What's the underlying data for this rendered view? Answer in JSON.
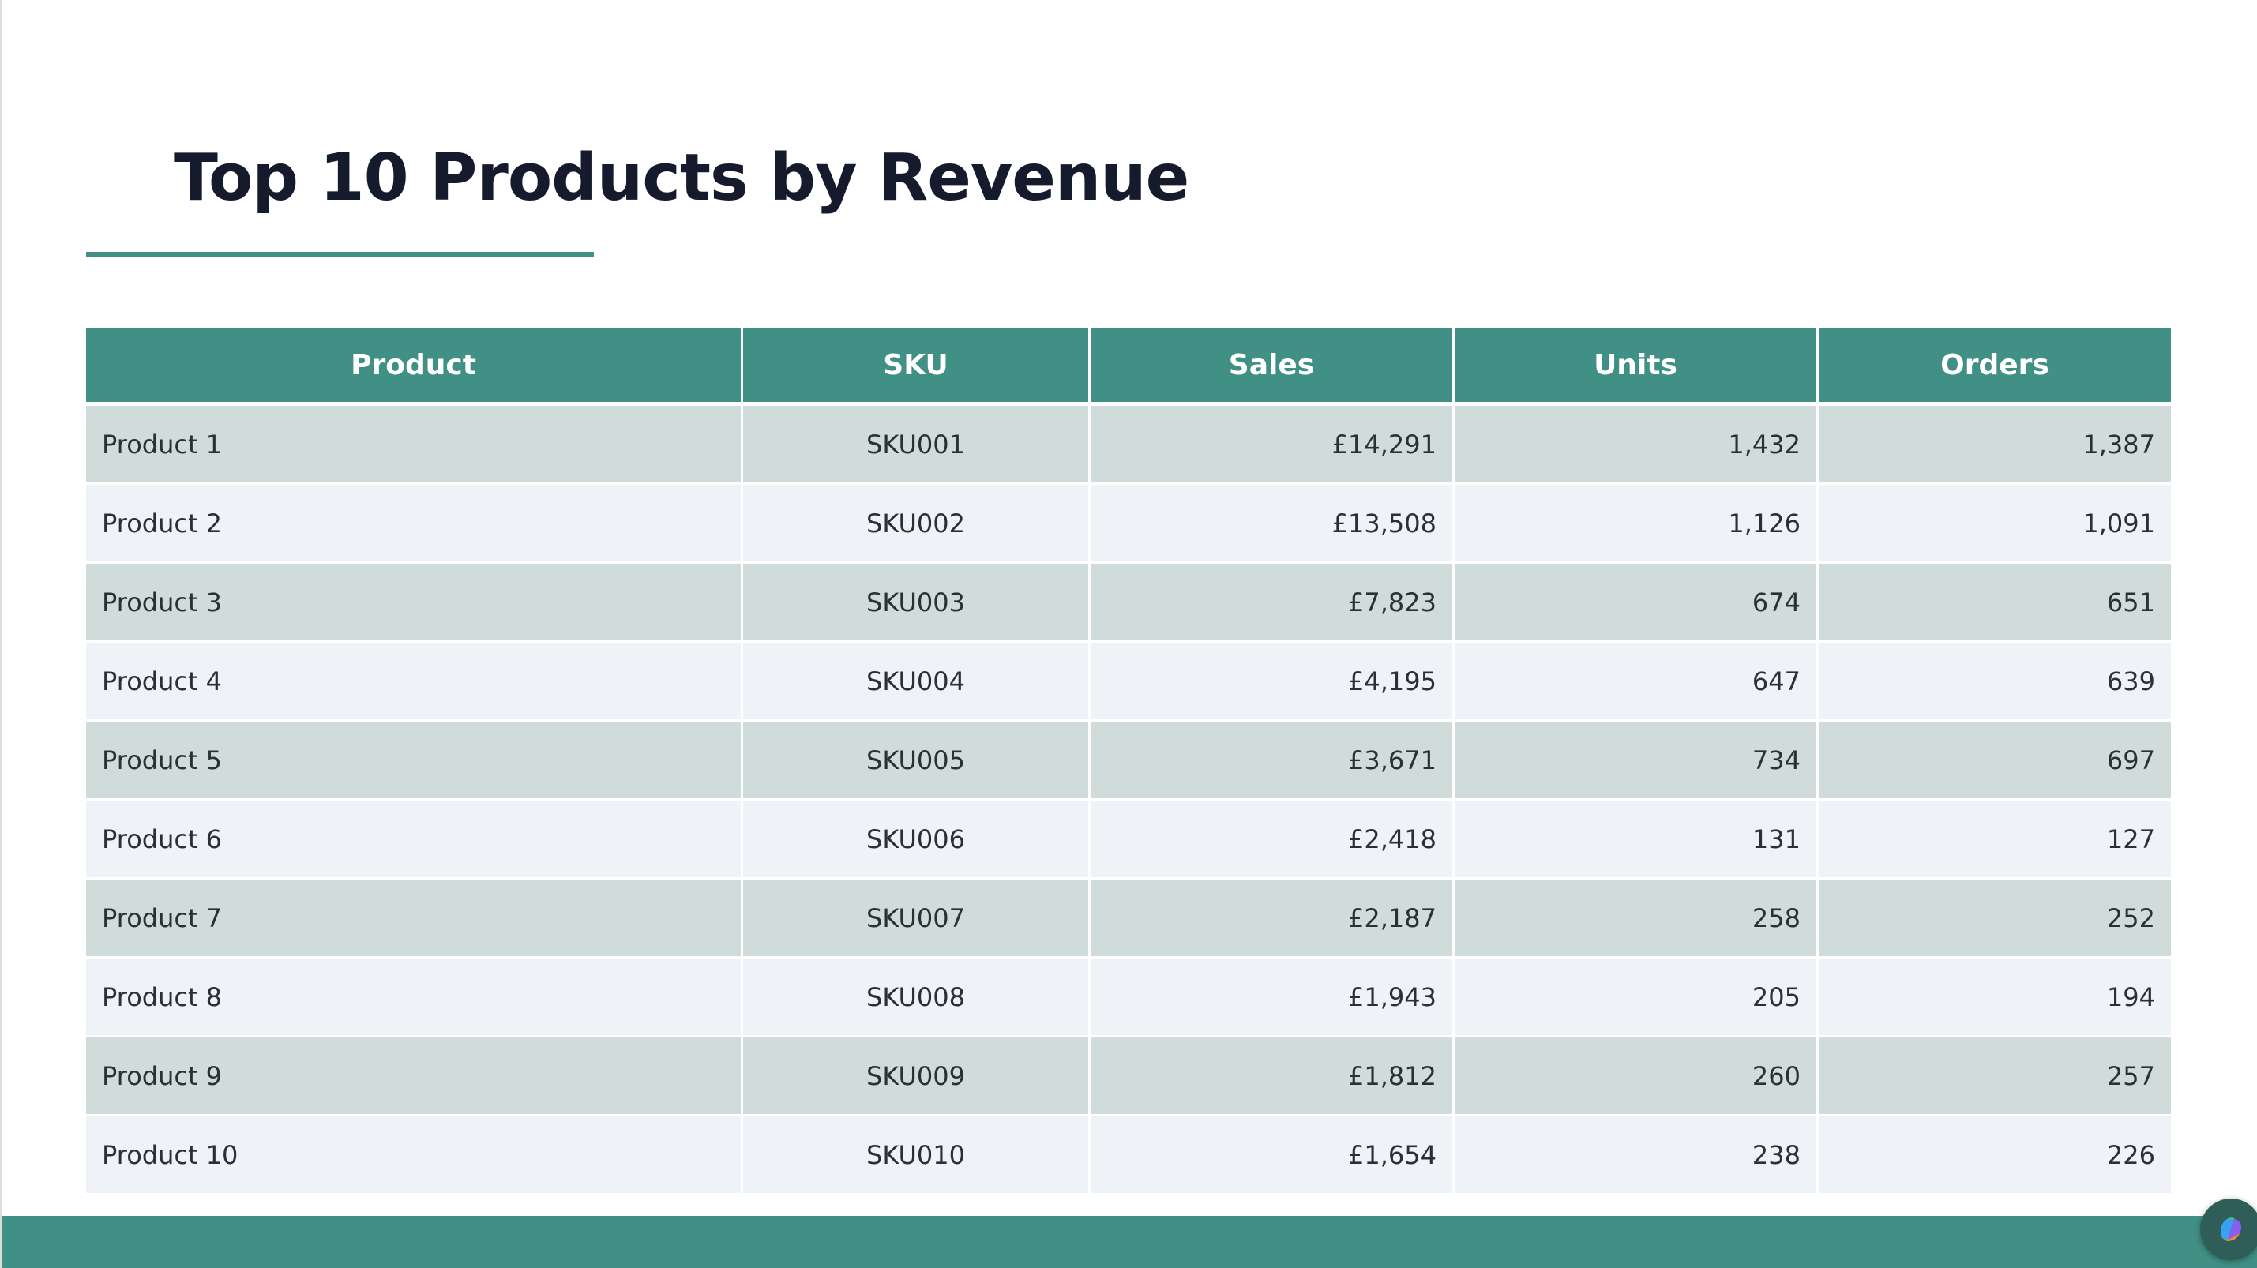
{
  "slide": {
    "title": "Top 10 Products by Revenue"
  },
  "colors": {
    "accent": "#419085",
    "title_text": "#151a2d",
    "row_odd": "#cfdcda",
    "row_even": "#eff3f7",
    "sku_text": "#6b7280"
  },
  "table": {
    "headers": [
      "Product",
      "SKU",
      "Sales",
      "Units",
      "Orders"
    ],
    "rows": [
      {
        "product": "Product 1",
        "sku": "SKU001",
        "sales": "£14,291",
        "units": "1,432",
        "orders": "1,387"
      },
      {
        "product": "Product 2",
        "sku": "SKU002",
        "sales": "£13,508",
        "units": "1,126",
        "orders": "1,091"
      },
      {
        "product": "Product 3",
        "sku": "SKU003",
        "sales": "£7,823",
        "units": "674",
        "orders": "651"
      },
      {
        "product": "Product 4",
        "sku": "SKU004",
        "sales": "£4,195",
        "units": "647",
        "orders": "639"
      },
      {
        "product": "Product 5",
        "sku": "SKU005",
        "sales": "£3,671",
        "units": "734",
        "orders": "697"
      },
      {
        "product": "Product 6",
        "sku": "SKU006",
        "sales": "£2,418",
        "units": "131",
        "orders": "127"
      },
      {
        "product": "Product 7",
        "sku": "SKU007",
        "sales": "£2,187",
        "units": "258",
        "orders": "252"
      },
      {
        "product": "Product 8",
        "sku": "SKU008",
        "sales": "£1,943",
        "units": "205",
        "orders": "194"
      },
      {
        "product": "Product 9",
        "sku": "SKU009",
        "sales": "£1,812",
        "units": "260",
        "orders": "257"
      },
      {
        "product": "Product 10",
        "sku": "SKU010",
        "sales": "£1,654",
        "units": "238",
        "orders": "226"
      }
    ]
  },
  "icons": {
    "corner_button": "copilot-icon"
  }
}
